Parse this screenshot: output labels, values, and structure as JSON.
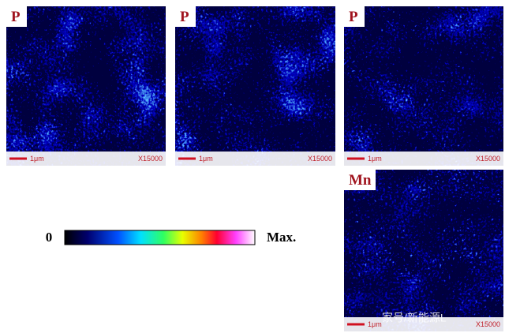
{
  "panels": [
    {
      "label": "P",
      "scale_bar": "1μm",
      "magnification": "X15000"
    },
    {
      "label": "P",
      "scale_bar": "1μm",
      "magnification": "X15000"
    },
    {
      "label": "P",
      "scale_bar": "1μm",
      "magnification": "X15000"
    },
    {
      "label": "Mn",
      "scale_bar": "1μm",
      "magnification": "X15000"
    }
  ],
  "colorbar": {
    "min_label": "0",
    "max_label": "Max."
  },
  "watermark": "家号/新能源L"
}
